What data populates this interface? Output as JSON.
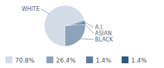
{
  "chart_data": {
    "type": "pie",
    "categories": [
      "WHITE",
      "BLACK",
      "A.I.",
      "ASIAN"
    ],
    "values": [
      70.8,
      26.4,
      1.4,
      1.4
    ],
    "value_labels": [
      "70.8%",
      "26.4%",
      "1.4%",
      "1.4%"
    ],
    "colors": [
      "#d3dbe6",
      "#8ea3bb",
      "#5e7fa0",
      "#2d5882"
    ]
  }
}
